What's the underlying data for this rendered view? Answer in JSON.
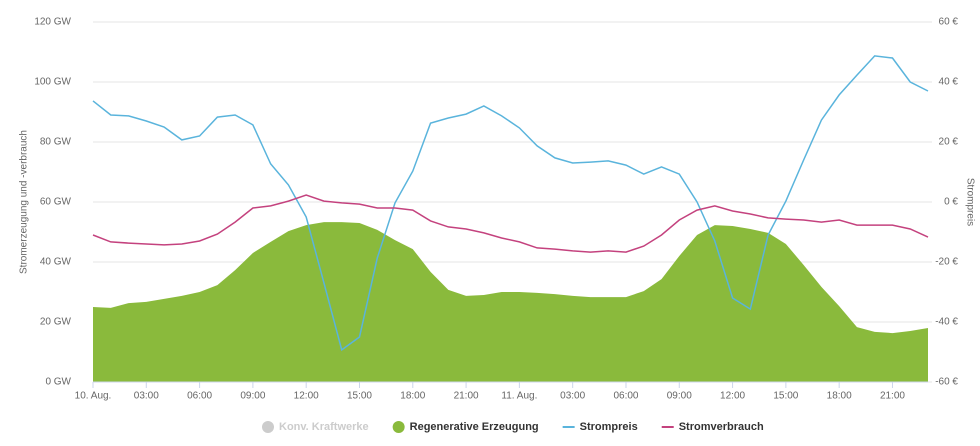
{
  "chart_data": {
    "type": "line",
    "y_axis_label": "Stromerzeugung und -verbrauch",
    "y2_axis_label": "Strompreis",
    "x": [
      0,
      1,
      2,
      3,
      4,
      5,
      6,
      7,
      8,
      9,
      10,
      11,
      12,
      13,
      14,
      15,
      16,
      17,
      18,
      19,
      20,
      21,
      22,
      23,
      24,
      25,
      26,
      27,
      28,
      29,
      30,
      31,
      32,
      33,
      34,
      35,
      36,
      37,
      38,
      39,
      40,
      41,
      42,
      43,
      44,
      45,
      46,
      47
    ],
    "xlim": [
      0,
      47
    ],
    "xticks": [
      {
        "value": 0,
        "label": "10. Aug."
      },
      {
        "value": 3,
        "label": "03:00"
      },
      {
        "value": 6,
        "label": "06:00"
      },
      {
        "value": 9,
        "label": "09:00"
      },
      {
        "value": 12,
        "label": "12:00"
      },
      {
        "value": 15,
        "label": "15:00"
      },
      {
        "value": 18,
        "label": "18:00"
      },
      {
        "value": 21,
        "label": "21:00"
      },
      {
        "value": 24,
        "label": "11. Aug."
      },
      {
        "value": 27,
        "label": "03:00"
      },
      {
        "value": 30,
        "label": "06:00"
      },
      {
        "value": 33,
        "label": "09:00"
      },
      {
        "value": 36,
        "label": "12:00"
      },
      {
        "value": 39,
        "label": "15:00"
      },
      {
        "value": 42,
        "label": "18:00"
      },
      {
        "value": 45,
        "label": "21:00"
      }
    ],
    "ylim": [
      0,
      120
    ],
    "yticks": [
      {
        "value": 0,
        "label": "0 GW"
      },
      {
        "value": 20,
        "label": "20 GW"
      },
      {
        "value": 40,
        "label": "40 GW"
      },
      {
        "value": 60,
        "label": "60 GW"
      },
      {
        "value": 80,
        "label": "80 GW"
      },
      {
        "value": 100,
        "label": "100 GW"
      },
      {
        "value": 120,
        "label": "120 GW"
      }
    ],
    "y2lim": [
      -60,
      60
    ],
    "y2ticks": [
      {
        "value": -60,
        "label": "-60 €"
      },
      {
        "value": -40,
        "label": "-40 €"
      },
      {
        "value": -20,
        "label": "-20 €"
      },
      {
        "value": 0,
        "label": "0 €"
      },
      {
        "value": 20,
        "label": "20 €"
      },
      {
        "value": 40,
        "label": "40 €"
      },
      {
        "value": 60,
        "label": "60 €"
      }
    ],
    "grid": true,
    "series": [
      {
        "name": "Konv. Kraftwerke",
        "color": "#cccccc",
        "type": "area",
        "visible": false
      },
      {
        "name": "Regenerative Erzeugung",
        "color": "#8aba3c",
        "type": "area",
        "values": [
          25,
          24.7,
          26.3,
          26.7,
          27.7,
          28.7,
          30,
          32.3,
          37.3,
          43,
          46.7,
          50.3,
          52.3,
          53.3,
          53.3,
          53,
          50.7,
          47.3,
          44.3,
          36.7,
          30.7,
          28.7,
          29,
          30,
          30,
          29.7,
          29.3,
          28.7,
          28.3,
          28.3,
          28.3,
          30.3,
          34.3,
          42,
          49,
          52.3,
          52,
          51,
          49.7,
          46,
          39,
          31.7,
          25.3,
          18.3,
          16.7,
          16.3,
          17,
          18
        ]
      },
      {
        "name": "Strompreis",
        "color": "#5ab4dc",
        "type": "line",
        "axis": "y2",
        "values": [
          33.7,
          29,
          28.7,
          27,
          25,
          20.7,
          22,
          28.3,
          29,
          25.7,
          12.7,
          5.7,
          -5,
          -27,
          -49.3,
          -45,
          -18.7,
          -0.3,
          10.3,
          26.3,
          28,
          29.3,
          32,
          28.7,
          24.7,
          18.7,
          14.7,
          13,
          13.3,
          13.7,
          12.3,
          9.3,
          11.7,
          9.3,
          0,
          -13,
          -32,
          -35.7,
          -11,
          0.3,
          14,
          27.3,
          35.7,
          42.3,
          48.7,
          48,
          40,
          37
        ]
      },
      {
        "name": "Stromverbrauch",
        "color": "#c4427e",
        "type": "line",
        "values": [
          49,
          46.7,
          46.3,
          46,
          45.7,
          46,
          47,
          49.3,
          53.3,
          58,
          58.7,
          60.3,
          62.3,
          60.3,
          59.7,
          59.3,
          58,
          58,
          57.3,
          53.7,
          51.7,
          51,
          49.7,
          48,
          46.7,
          44.7,
          44.3,
          43.7,
          43.3,
          43.7,
          43.3,
          45.3,
          49,
          54,
          57.3,
          58.7,
          57,
          56,
          54.7,
          54.3,
          54,
          53.3,
          54,
          52.3,
          52.3,
          52.3,
          51,
          48.3
        ]
      }
    ]
  }
}
